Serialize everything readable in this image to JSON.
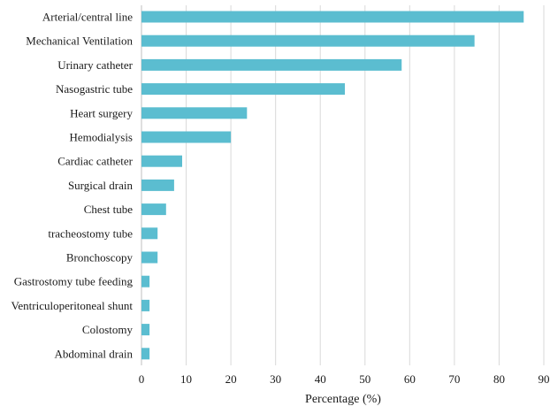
{
  "chart_data": {
    "type": "bar",
    "orientation": "horizontal",
    "title": "",
    "xlabel": "Percentage (%)",
    "ylabel": "",
    "xlim": [
      0,
      90
    ],
    "xticks": [
      0,
      10,
      20,
      30,
      40,
      50,
      60,
      70,
      80,
      90
    ],
    "grid": "vertical",
    "bar_color": "#5bbdd0",
    "categories": [
      "Arterial/central line",
      "Mechanical Ventilation",
      "Urinary catheter",
      "Nasogastric tube",
      "Heart surgery",
      "Hemodialysis",
      "Cardiac catheter",
      "Surgical drain",
      "Chest tube",
      "tracheostomy tube",
      "Bronchoscopy",
      "Gastrostomy tube feeding",
      "Ventriculoperitoneal shunt",
      "Colostomy",
      "Abdominal drain"
    ],
    "values": [
      85.5,
      74.5,
      58.2,
      45.5,
      23.6,
      20.0,
      9.1,
      7.3,
      5.5,
      3.6,
      3.6,
      1.8,
      1.8,
      1.8,
      1.8
    ]
  }
}
